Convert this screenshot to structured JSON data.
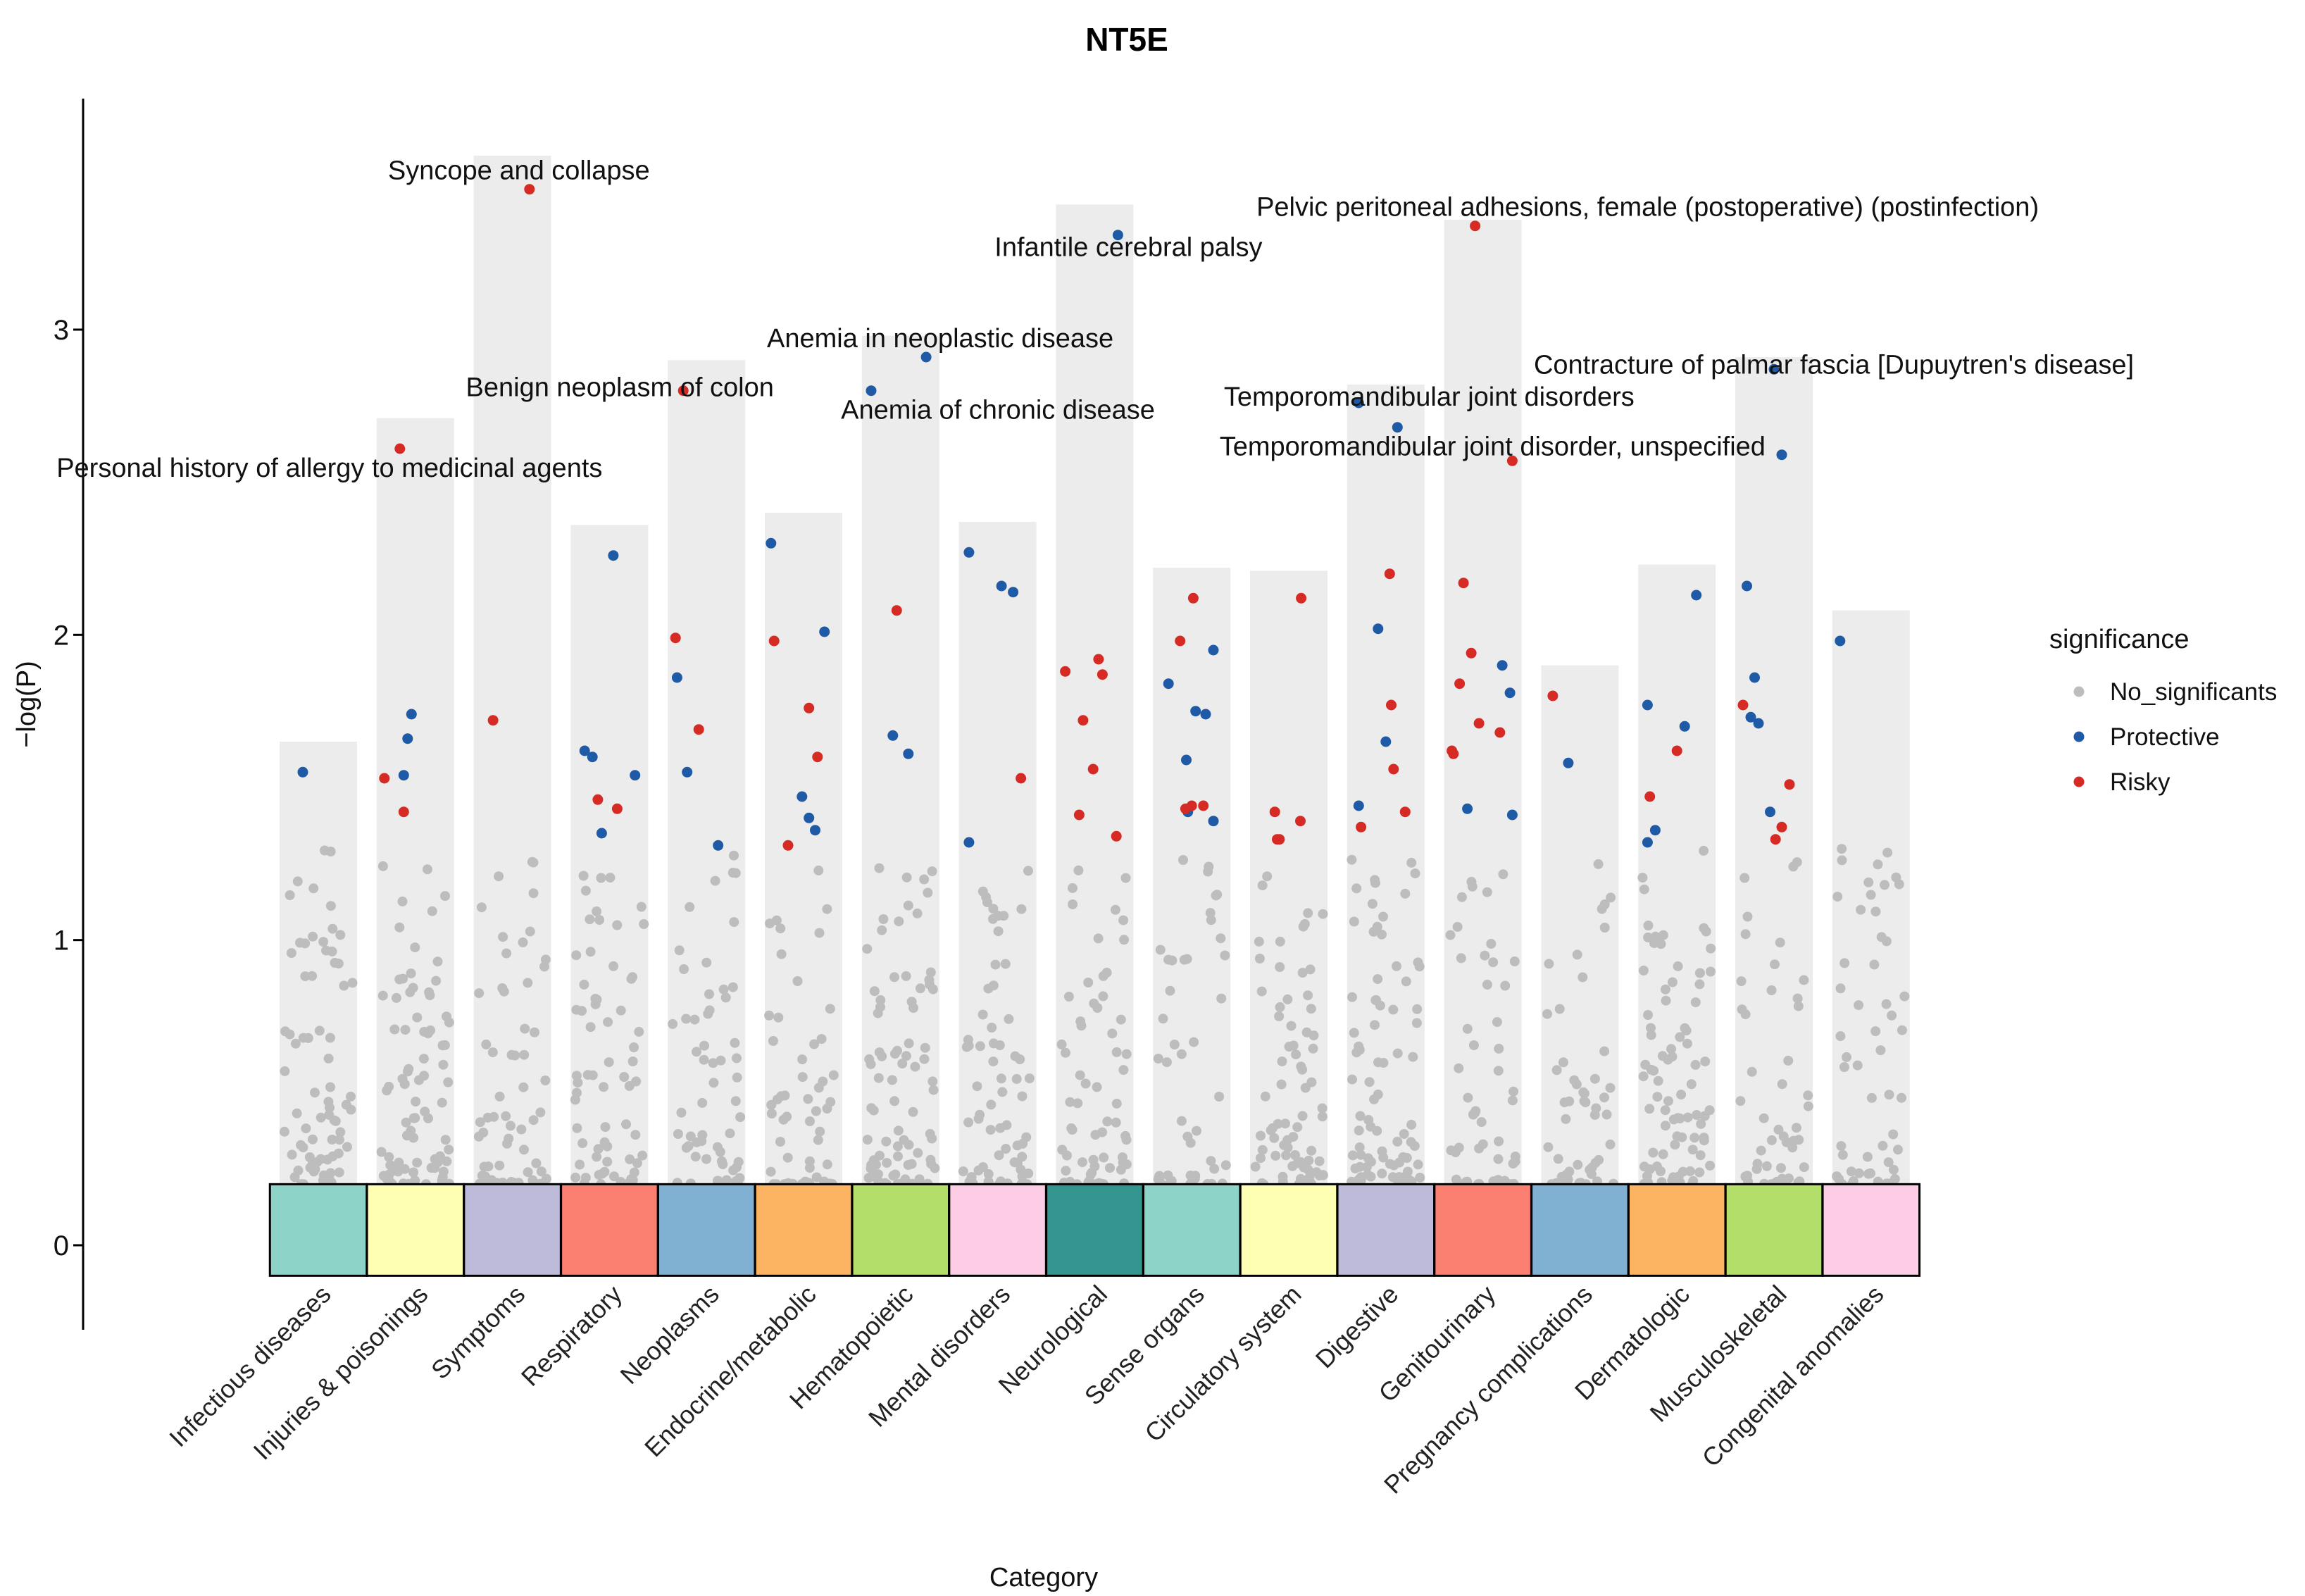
{
  "chart_data": {
    "type": "scatter",
    "title": "NT5E",
    "xlabel": "Category",
    "ylabel": "−log(P)",
    "ylim": [
      -0.2,
      3.75
    ],
    "yticks": [
      0,
      1,
      2,
      3
    ],
    "grid": false,
    "legend": {
      "title": "significance",
      "placement": "right",
      "entries": [
        {
          "label": "No_significants",
          "color": "#bdbdbd"
        },
        {
          "label": "Protective",
          "color": "#1f5aa6"
        },
        {
          "label": "Risky",
          "color": "#d62a24"
        }
      ]
    },
    "categories": [
      {
        "name": "Infectious diseases",
        "max": 1.65,
        "color": "#8dd3c7"
      },
      {
        "name": "Injuries & poisonings",
        "max": 2.71,
        "color": "#ffffb3"
      },
      {
        "name": "Symptoms",
        "max": 3.57,
        "color": "#bebada"
      },
      {
        "name": "Respiratory",
        "max": 2.36,
        "color": "#fb8072"
      },
      {
        "name": "Neoplasms",
        "max": 2.9,
        "color": "#80b1d3"
      },
      {
        "name": "Endocrine/metabolic",
        "max": 2.4,
        "color": "#fdb462"
      },
      {
        "name": "Hematopoietic",
        "max": 2.98,
        "color": "#b3de69"
      },
      {
        "name": "Mental disorders",
        "max": 2.37,
        "color": "#fccde5"
      },
      {
        "name": "Neurological",
        "max": 3.41,
        "color": "#35968f"
      },
      {
        "name": "Sense organs",
        "max": 2.22,
        "color": "#8dd3c7"
      },
      {
        "name": "Circulatory system",
        "max": 2.21,
        "color": "#ffffb3"
      },
      {
        "name": "Digestive",
        "max": 2.82,
        "color": "#bebada"
      },
      {
        "name": "Genitourinary",
        "max": 3.36,
        "color": "#fb8072"
      },
      {
        "name": "Pregnancy complications",
        "max": 1.9,
        "color": "#80b1d3"
      },
      {
        "name": "Dermatologic",
        "max": 2.23,
        "color": "#fdb462"
      },
      {
        "name": "Musculoskeletal",
        "max": 2.91,
        "color": "#b3de69"
      },
      {
        "name": "Congenital anomalies",
        "max": 2.08,
        "color": "#fccde5"
      }
    ],
    "points_protective": [
      {
        "cat": 0,
        "j": 0.3,
        "y": 1.55
      },
      {
        "cat": 1,
        "j": 0.35,
        "y": 1.54
      },
      {
        "cat": 1,
        "j": 0.4,
        "y": 1.66
      },
      {
        "cat": 1,
        "j": 0.45,
        "y": 1.74
      },
      {
        "cat": 3,
        "j": 0.18,
        "y": 1.62
      },
      {
        "cat": 3,
        "j": 0.28,
        "y": 1.6
      },
      {
        "cat": 3,
        "j": 0.4,
        "y": 1.35
      },
      {
        "cat": 3,
        "j": 0.55,
        "y": 2.26
      },
      {
        "cat": 3,
        "j": 0.83,
        "y": 1.54
      },
      {
        "cat": 4,
        "j": 0.12,
        "y": 1.86
      },
      {
        "cat": 4,
        "j": 0.25,
        "y": 1.55
      },
      {
        "cat": 4,
        "j": 0.65,
        "y": 1.31
      },
      {
        "cat": 5,
        "j": 0.08,
        "y": 2.3
      },
      {
        "cat": 5,
        "j": 0.48,
        "y": 1.47
      },
      {
        "cat": 5,
        "j": 0.57,
        "y": 1.4
      },
      {
        "cat": 5,
        "j": 0.65,
        "y": 1.36
      },
      {
        "cat": 5,
        "j": 0.77,
        "y": 2.01
      },
      {
        "cat": 6,
        "j": 0.12,
        "y": 2.8
      },
      {
        "cat": 6,
        "j": 0.4,
        "y": 1.67
      },
      {
        "cat": 6,
        "j": 0.6,
        "y": 1.61
      },
      {
        "cat": 6,
        "j": 0.83,
        "y": 2.91
      },
      {
        "cat": 7,
        "j": 0.13,
        "y": 1.32
      },
      {
        "cat": 7,
        "j": 0.13,
        "y": 2.27
      },
      {
        "cat": 7,
        "j": 0.55,
        "y": 2.16
      },
      {
        "cat": 7,
        "j": 0.7,
        "y": 2.14
      },
      {
        "cat": 8,
        "j": 0.8,
        "y": 3.31
      },
      {
        "cat": 9,
        "j": 0.2,
        "y": 1.84
      },
      {
        "cat": 9,
        "j": 0.43,
        "y": 1.59
      },
      {
        "cat": 9,
        "j": 0.45,
        "y": 1.42
      },
      {
        "cat": 9,
        "j": 0.55,
        "y": 1.75
      },
      {
        "cat": 9,
        "j": 0.68,
        "y": 1.74
      },
      {
        "cat": 9,
        "j": 0.78,
        "y": 1.95
      },
      {
        "cat": 9,
        "j": 0.78,
        "y": 1.39
      },
      {
        "cat": 11,
        "j": 0.15,
        "y": 1.44
      },
      {
        "cat": 11,
        "j": 0.15,
        "y": 2.76
      },
      {
        "cat": 11,
        "j": 0.4,
        "y": 2.02
      },
      {
        "cat": 11,
        "j": 0.5,
        "y": 1.65
      },
      {
        "cat": 11,
        "j": 0.65,
        "y": 2.68
      },
      {
        "cat": 12,
        "j": 0.3,
        "y": 1.43
      },
      {
        "cat": 12,
        "j": 0.75,
        "y": 1.9
      },
      {
        "cat": 12,
        "j": 0.85,
        "y": 1.81
      },
      {
        "cat": 12,
        "j": 0.88,
        "y": 1.41
      },
      {
        "cat": 13,
        "j": 0.35,
        "y": 1.58
      },
      {
        "cat": 14,
        "j": 0.12,
        "y": 1.77
      },
      {
        "cat": 14,
        "j": 0.12,
        "y": 1.32
      },
      {
        "cat": 14,
        "j": 0.22,
        "y": 1.36
      },
      {
        "cat": 14,
        "j": 0.6,
        "y": 1.7
      },
      {
        "cat": 14,
        "j": 0.75,
        "y": 2.13
      },
      {
        "cat": 15,
        "j": 0.15,
        "y": 2.16
      },
      {
        "cat": 15,
        "j": 0.2,
        "y": 1.73
      },
      {
        "cat": 15,
        "j": 0.25,
        "y": 1.86
      },
      {
        "cat": 15,
        "j": 0.3,
        "y": 1.71
      },
      {
        "cat": 15,
        "j": 0.45,
        "y": 1.42
      },
      {
        "cat": 15,
        "j": 0.5,
        "y": 2.87
      },
      {
        "cat": 15,
        "j": 0.6,
        "y": 2.59
      },
      {
        "cat": 16,
        "j": 0.1,
        "y": 1.98
      }
    ],
    "points_risky": [
      {
        "cat": 1,
        "j": 0.1,
        "y": 1.53
      },
      {
        "cat": 1,
        "j": 0.3,
        "y": 2.61
      },
      {
        "cat": 1,
        "j": 0.35,
        "y": 1.42
      },
      {
        "cat": 2,
        "j": 0.25,
        "y": 1.72
      },
      {
        "cat": 2,
        "j": 0.72,
        "y": 3.46
      },
      {
        "cat": 3,
        "j": 0.35,
        "y": 1.46
      },
      {
        "cat": 3,
        "j": 0.6,
        "y": 1.43
      },
      {
        "cat": 4,
        "j": 0.1,
        "y": 1.99
      },
      {
        "cat": 4,
        "j": 0.2,
        "y": 2.8
      },
      {
        "cat": 4,
        "j": 0.4,
        "y": 1.69
      },
      {
        "cat": 5,
        "j": 0.12,
        "y": 1.98
      },
      {
        "cat": 5,
        "j": 0.3,
        "y": 1.31
      },
      {
        "cat": 5,
        "j": 0.57,
        "y": 1.76
      },
      {
        "cat": 5,
        "j": 0.68,
        "y": 1.6
      },
      {
        "cat": 6,
        "j": 0.45,
        "y": 2.08
      },
      {
        "cat": 7,
        "j": 0.8,
        "y": 1.53
      },
      {
        "cat": 8,
        "j": 0.12,
        "y": 1.88
      },
      {
        "cat": 8,
        "j": 0.3,
        "y": 1.41
      },
      {
        "cat": 8,
        "j": 0.35,
        "y": 1.72
      },
      {
        "cat": 8,
        "j": 0.48,
        "y": 1.56
      },
      {
        "cat": 8,
        "j": 0.55,
        "y": 1.92
      },
      {
        "cat": 8,
        "j": 0.6,
        "y": 1.87
      },
      {
        "cat": 8,
        "j": 0.78,
        "y": 1.34
      },
      {
        "cat": 9,
        "j": 0.35,
        "y": 1.98
      },
      {
        "cat": 9,
        "j": 0.42,
        "y": 1.43
      },
      {
        "cat": 9,
        "j": 0.5,
        "y": 1.44
      },
      {
        "cat": 9,
        "j": 0.52,
        "y": 2.12
      },
      {
        "cat": 9,
        "j": 0.65,
        "y": 1.44
      },
      {
        "cat": 10,
        "j": 0.32,
        "y": 1.42
      },
      {
        "cat": 10,
        "j": 0.35,
        "y": 1.33
      },
      {
        "cat": 10,
        "j": 0.38,
        "y": 1.33
      },
      {
        "cat": 10,
        "j": 0.65,
        "y": 1.39
      },
      {
        "cat": 10,
        "j": 0.66,
        "y": 2.12
      },
      {
        "cat": 11,
        "j": 0.18,
        "y": 1.37
      },
      {
        "cat": 11,
        "j": 0.55,
        "y": 2.2
      },
      {
        "cat": 11,
        "j": 0.57,
        "y": 1.77
      },
      {
        "cat": 11,
        "j": 0.6,
        "y": 1.56
      },
      {
        "cat": 11,
        "j": 0.75,
        "y": 1.42
      },
      {
        "cat": 12,
        "j": 0.1,
        "y": 1.62
      },
      {
        "cat": 12,
        "j": 0.12,
        "y": 1.61
      },
      {
        "cat": 12,
        "j": 0.2,
        "y": 1.84
      },
      {
        "cat": 12,
        "j": 0.25,
        "y": 2.17
      },
      {
        "cat": 12,
        "j": 0.35,
        "y": 1.94
      },
      {
        "cat": 12,
        "j": 0.45,
        "y": 1.71
      },
      {
        "cat": 12,
        "j": 0.4,
        "y": 3.34
      },
      {
        "cat": 12,
        "j": 0.72,
        "y": 1.68
      },
      {
        "cat": 12,
        "j": 0.88,
        "y": 2.57
      },
      {
        "cat": 13,
        "j": 0.15,
        "y": 1.8
      },
      {
        "cat": 14,
        "j": 0.15,
        "y": 1.47
      },
      {
        "cat": 14,
        "j": 0.5,
        "y": 1.62
      },
      {
        "cat": 15,
        "j": 0.1,
        "y": 1.77
      },
      {
        "cat": 15,
        "j": 0.52,
        "y": 1.33
      },
      {
        "cat": 15,
        "j": 0.6,
        "y": 1.37
      },
      {
        "cat": 15,
        "j": 0.7,
        "y": 1.51
      }
    ],
    "annotations": [
      {
        "label": "Syncope and collapse",
        "cat": 2,
        "j": 0.72,
        "y": 3.46
      },
      {
        "label": "Infantile cerebral palsy",
        "cat": 8,
        "j": 0.8,
        "y": 3.31
      },
      {
        "label": "Pelvic peritoneal adhesions, female (postoperative) (postinfection)",
        "cat": 12,
        "j": 0.4,
        "y": 3.34
      },
      {
        "label": "Anemia in neoplastic disease",
        "cat": 6,
        "j": 0.83,
        "y": 2.91
      },
      {
        "label": "Contracture of palmar fascia [Dupuytren's disease]",
        "cat": 15,
        "j": 0.5,
        "y": 2.87
      },
      {
        "label": "Benign neoplasm of colon",
        "cat": 4,
        "j": 0.2,
        "y": 2.8
      },
      {
        "label": "Anemia of chronic disease",
        "cat": 6,
        "j": 0.12,
        "y": 2.8
      },
      {
        "label": "Temporomandibular joint disorders",
        "cat": 11,
        "j": 0.15,
        "y": 2.76
      },
      {
        "label": "Temporomandibular joint disorder, unspecified",
        "cat": 11,
        "j": 0.65,
        "y": 2.68
      },
      {
        "label": "Personal history of allergy to medicinal agents",
        "cat": 1,
        "j": 0.3,
        "y": 2.61
      }
    ]
  }
}
